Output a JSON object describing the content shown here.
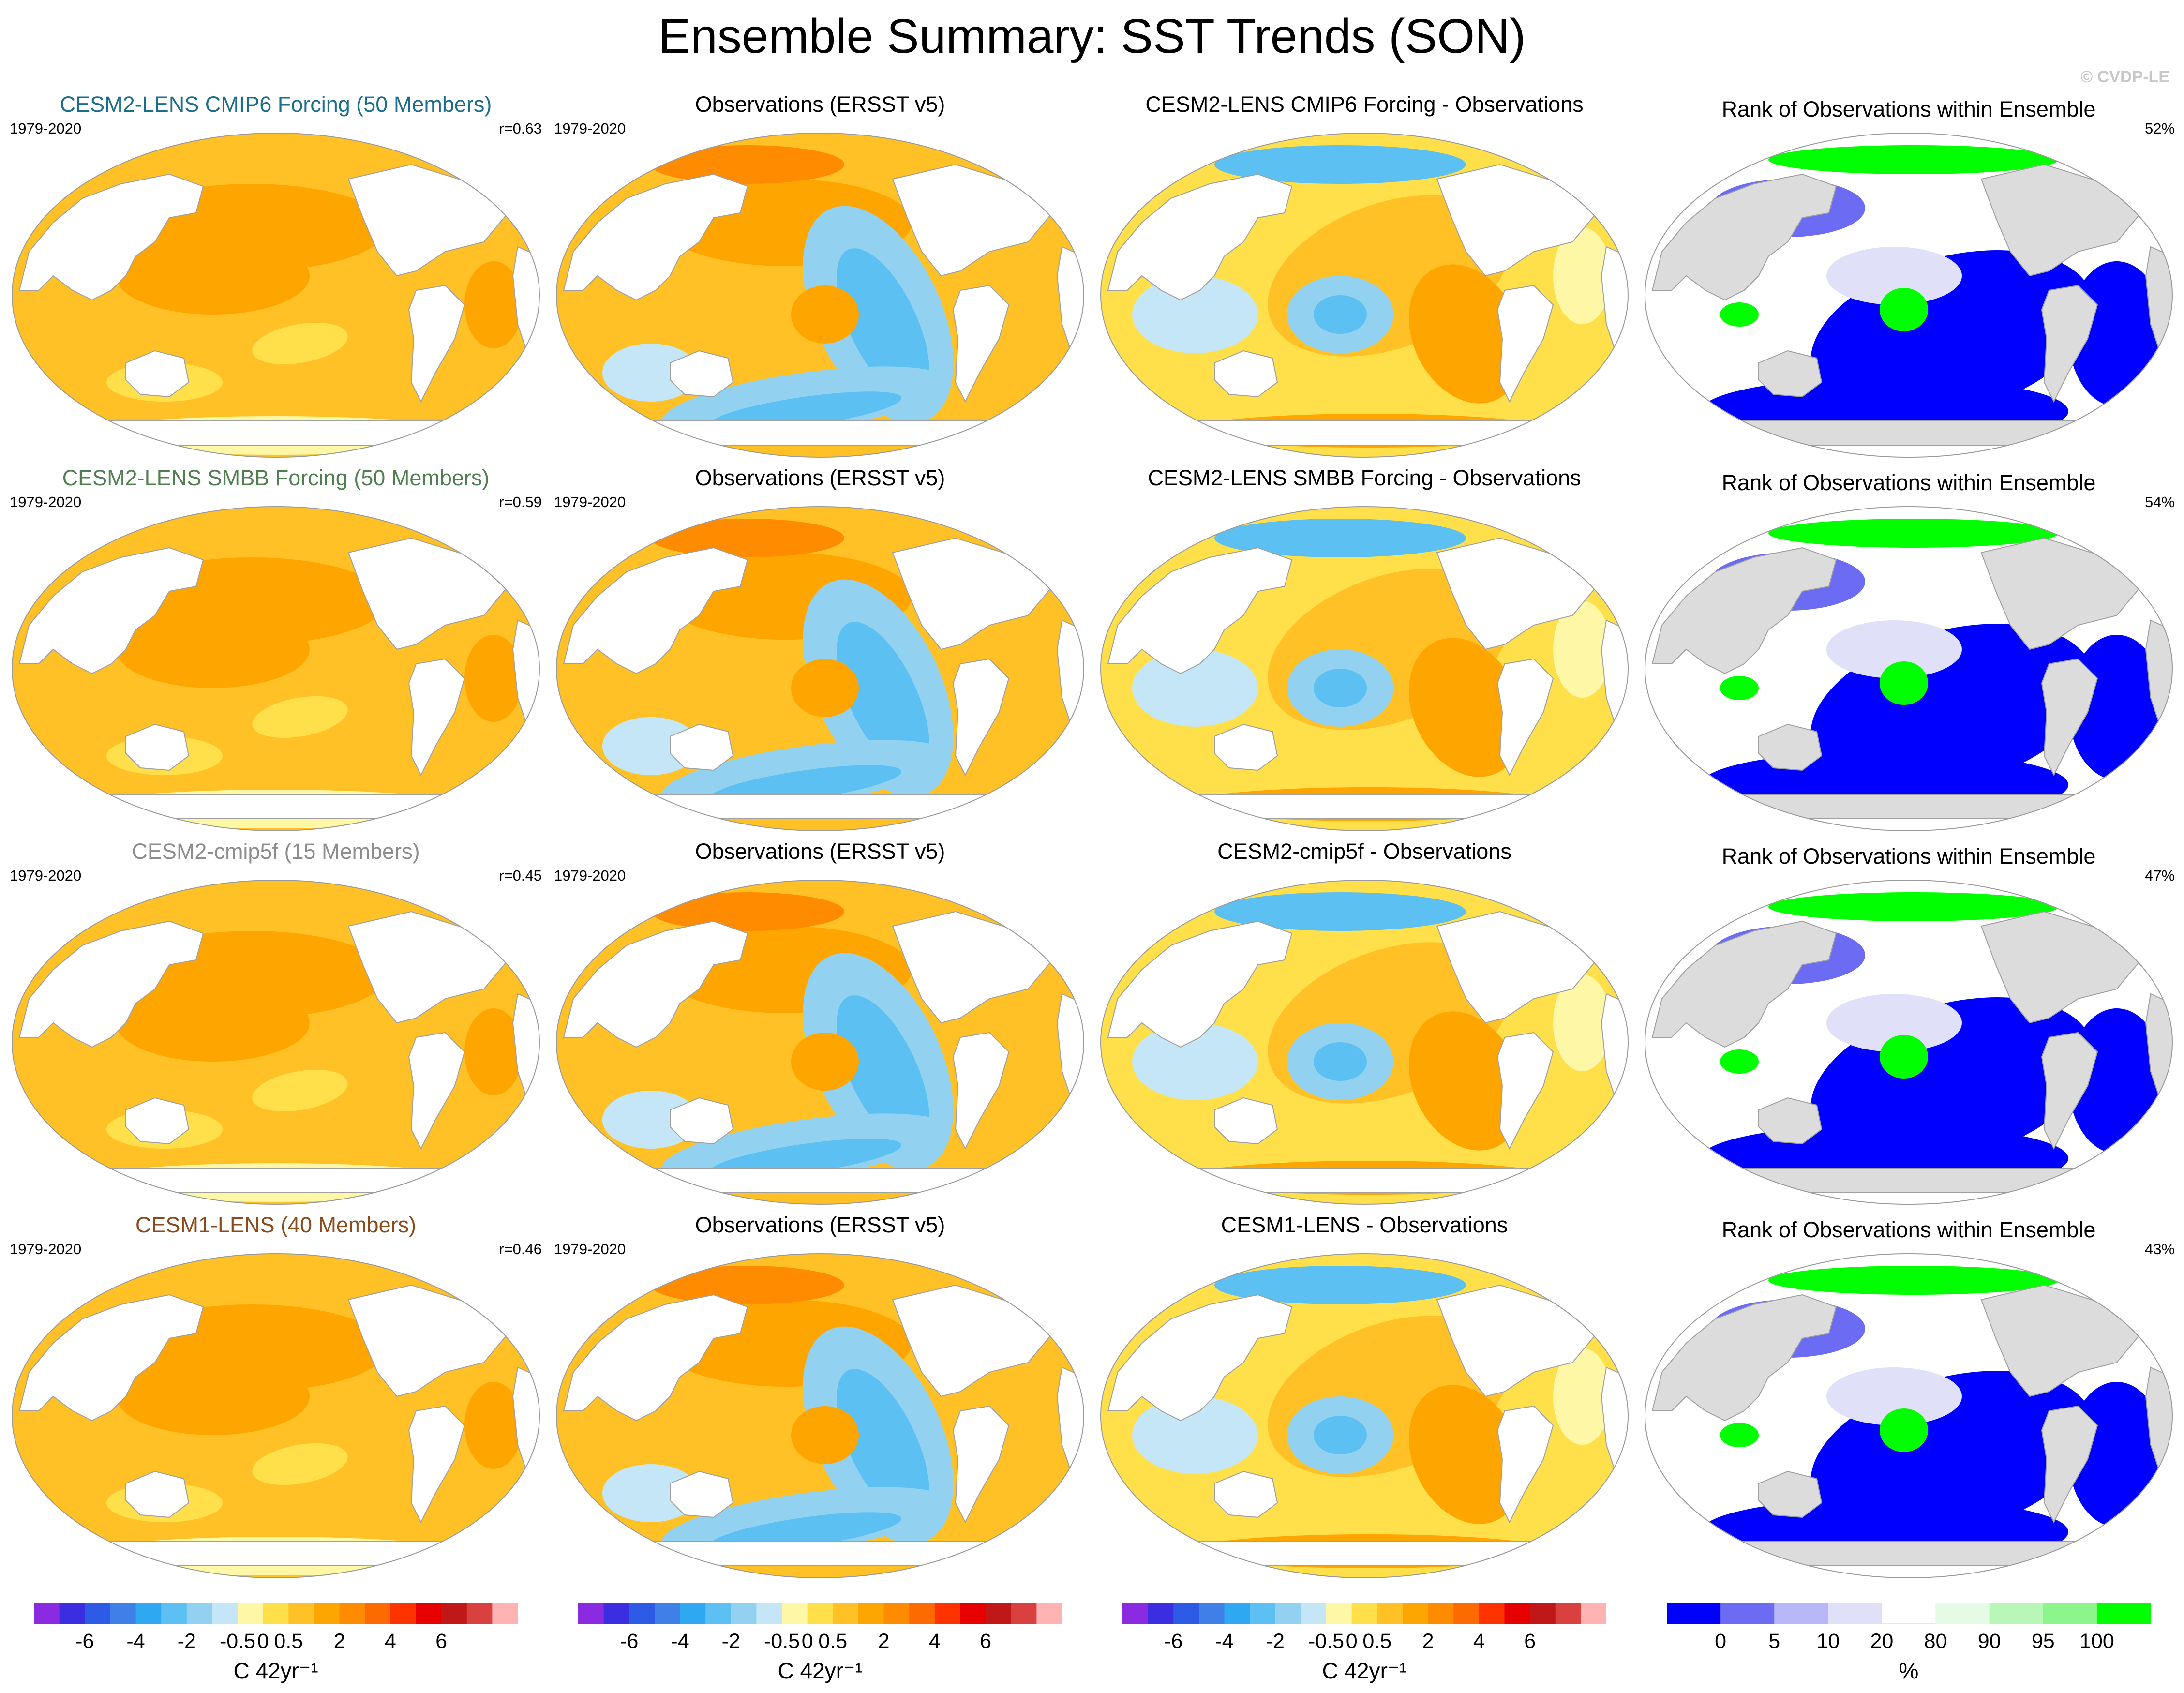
{
  "title": "Ensemble Summary: SST Trends (SON)",
  "watermark": "© CVDP-LE",
  "rows": [
    {
      "model": {
        "title": "CESM2-LENS CMIP6 Forcing (50 Members)",
        "title_color": "#1a6e8c",
        "period": "1979-2020",
        "corr": "r=0.63"
      },
      "obs": {
        "title": "Observations (ERSST v5)",
        "period": "1979-2020"
      },
      "diff": {
        "title": "CESM2-LENS CMIP6 Forcing - Observations"
      },
      "rank": {
        "title": "Rank of Observations within Ensemble",
        "pct": "52%"
      }
    },
    {
      "model": {
        "title": "CESM2-LENS SMBB Forcing (50 Members)",
        "title_color": "#4f7f4f",
        "period": "1979-2020",
        "corr": "r=0.59"
      },
      "obs": {
        "title": "Observations (ERSST v5)",
        "period": "1979-2020"
      },
      "diff": {
        "title": "CESM2-LENS SMBB Forcing - Observations"
      },
      "rank": {
        "title": "Rank of Observations within Ensemble",
        "pct": "54%"
      }
    },
    {
      "model": {
        "title": "CESM2-cmip5f (15 Members)",
        "title_color": "#8c8c8c",
        "period": "1979-2020",
        "corr": "r=0.45"
      },
      "obs": {
        "title": "Observations (ERSST v5)",
        "period": "1979-2020"
      },
      "diff": {
        "title": "CESM2-cmip5f - Observations"
      },
      "rank": {
        "title": "Rank of Observations within Ensemble",
        "pct": "47%"
      }
    },
    {
      "model": {
        "title": "CESM1-LENS (40 Members)",
        "title_color": "#8c4a1a",
        "period": "1979-2020",
        "corr": "r=0.46"
      },
      "obs": {
        "title": "Observations (ERSST v5)",
        "period": "1979-2020"
      },
      "diff": {
        "title": "CESM1-LENS - Observations"
      },
      "rank": {
        "title": "Rank of Observations within Ensemble",
        "pct": "43%"
      }
    }
  ],
  "colorbars": {
    "trend": {
      "units": "C 42yr⁻¹",
      "colors": [
        "#8a2be2",
        "#3a2ee0",
        "#2d5be6",
        "#3f7fe8",
        "#2ea8f0",
        "#5cc0f2",
        "#92d2f0",
        "#c5e6f6",
        "#fdf7a6",
        "#ffe04a",
        "#ffc125",
        "#ffa500",
        "#ff8c00",
        "#ff6a00",
        "#ff3300",
        "#e60000",
        "#c01818",
        "#d94040",
        "#ffb3b3"
      ],
      "ticks": [
        "-6",
        "-4",
        "-2",
        "-0.5",
        "0",
        "0.5",
        "2",
        "4",
        "6"
      ]
    },
    "rank": {
      "units": "%",
      "colors": [
        "#0000ff",
        "#6b6bf4",
        "#b8b8f8",
        "#e0e0f8",
        "#ffffff",
        "#e6fbe6",
        "#b9f7b9",
        "#8cf58c",
        "#00ff00"
      ],
      "ticks": [
        "0",
        "5",
        "10",
        "20",
        "80",
        "90",
        "95",
        "100"
      ]
    }
  },
  "colors": {
    "land": "#ffffff",
    "rank_land": "#dcdcdc",
    "coast": "#a0a0a0"
  }
}
